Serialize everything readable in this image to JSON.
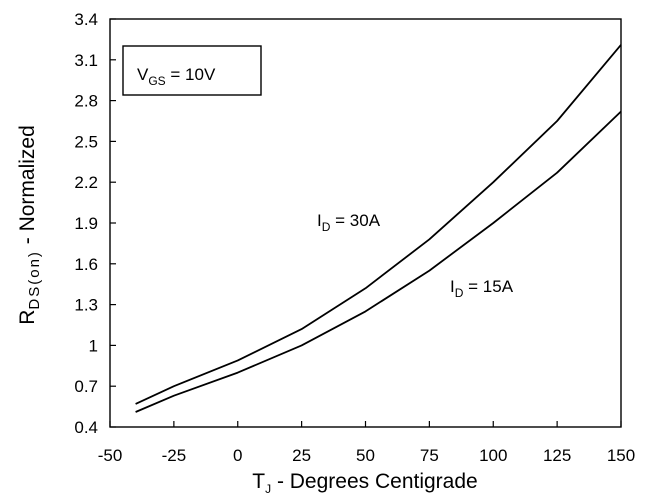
{
  "chart_data": {
    "type": "line",
    "xlabel": {
      "main": "T",
      "sub": "J",
      "rest": " - Degrees Centigrade"
    },
    "ylabel": {
      "main": "R",
      "sub": "DS(on)",
      "rest": " - Normalized"
    },
    "xlim": [
      -50,
      150
    ],
    "ylim": [
      0.4,
      3.4
    ],
    "xticks": [
      -50,
      -25,
      0,
      25,
      50,
      75,
      100,
      125,
      150
    ],
    "yticks": [
      0.4,
      0.7,
      1,
      1.3,
      1.6,
      1.9,
      2.2,
      2.5,
      2.8,
      3.1,
      3.4
    ],
    "ytick_labels": [
      "0.4",
      "0.7",
      "1",
      "1.3",
      "1.6",
      "1.9",
      "2.2",
      "2.5",
      "2.8",
      "3.1",
      "3.4"
    ],
    "grid": false,
    "condition": {
      "main": "V",
      "sub": "GS",
      "rest": " = 10V"
    },
    "series": [
      {
        "name": {
          "main": "I",
          "sub": "D",
          "rest": " = 30A"
        },
        "color": "#000000",
        "x": [
          -40,
          -25,
          0,
          25,
          50,
          75,
          100,
          125,
          150
        ],
        "y": [
          0.57,
          0.7,
          0.89,
          1.12,
          1.42,
          1.78,
          2.2,
          2.65,
          3.21
        ]
      },
      {
        "name": {
          "main": "I",
          "sub": "D",
          "rest": " = 15A"
        },
        "color": "#000000",
        "x": [
          -40,
          -25,
          0,
          25,
          50,
          75,
          100,
          125,
          150
        ],
        "y": [
          0.51,
          0.63,
          0.8,
          1.0,
          1.25,
          1.55,
          1.9,
          2.27,
          2.72
        ]
      }
    ]
  }
}
